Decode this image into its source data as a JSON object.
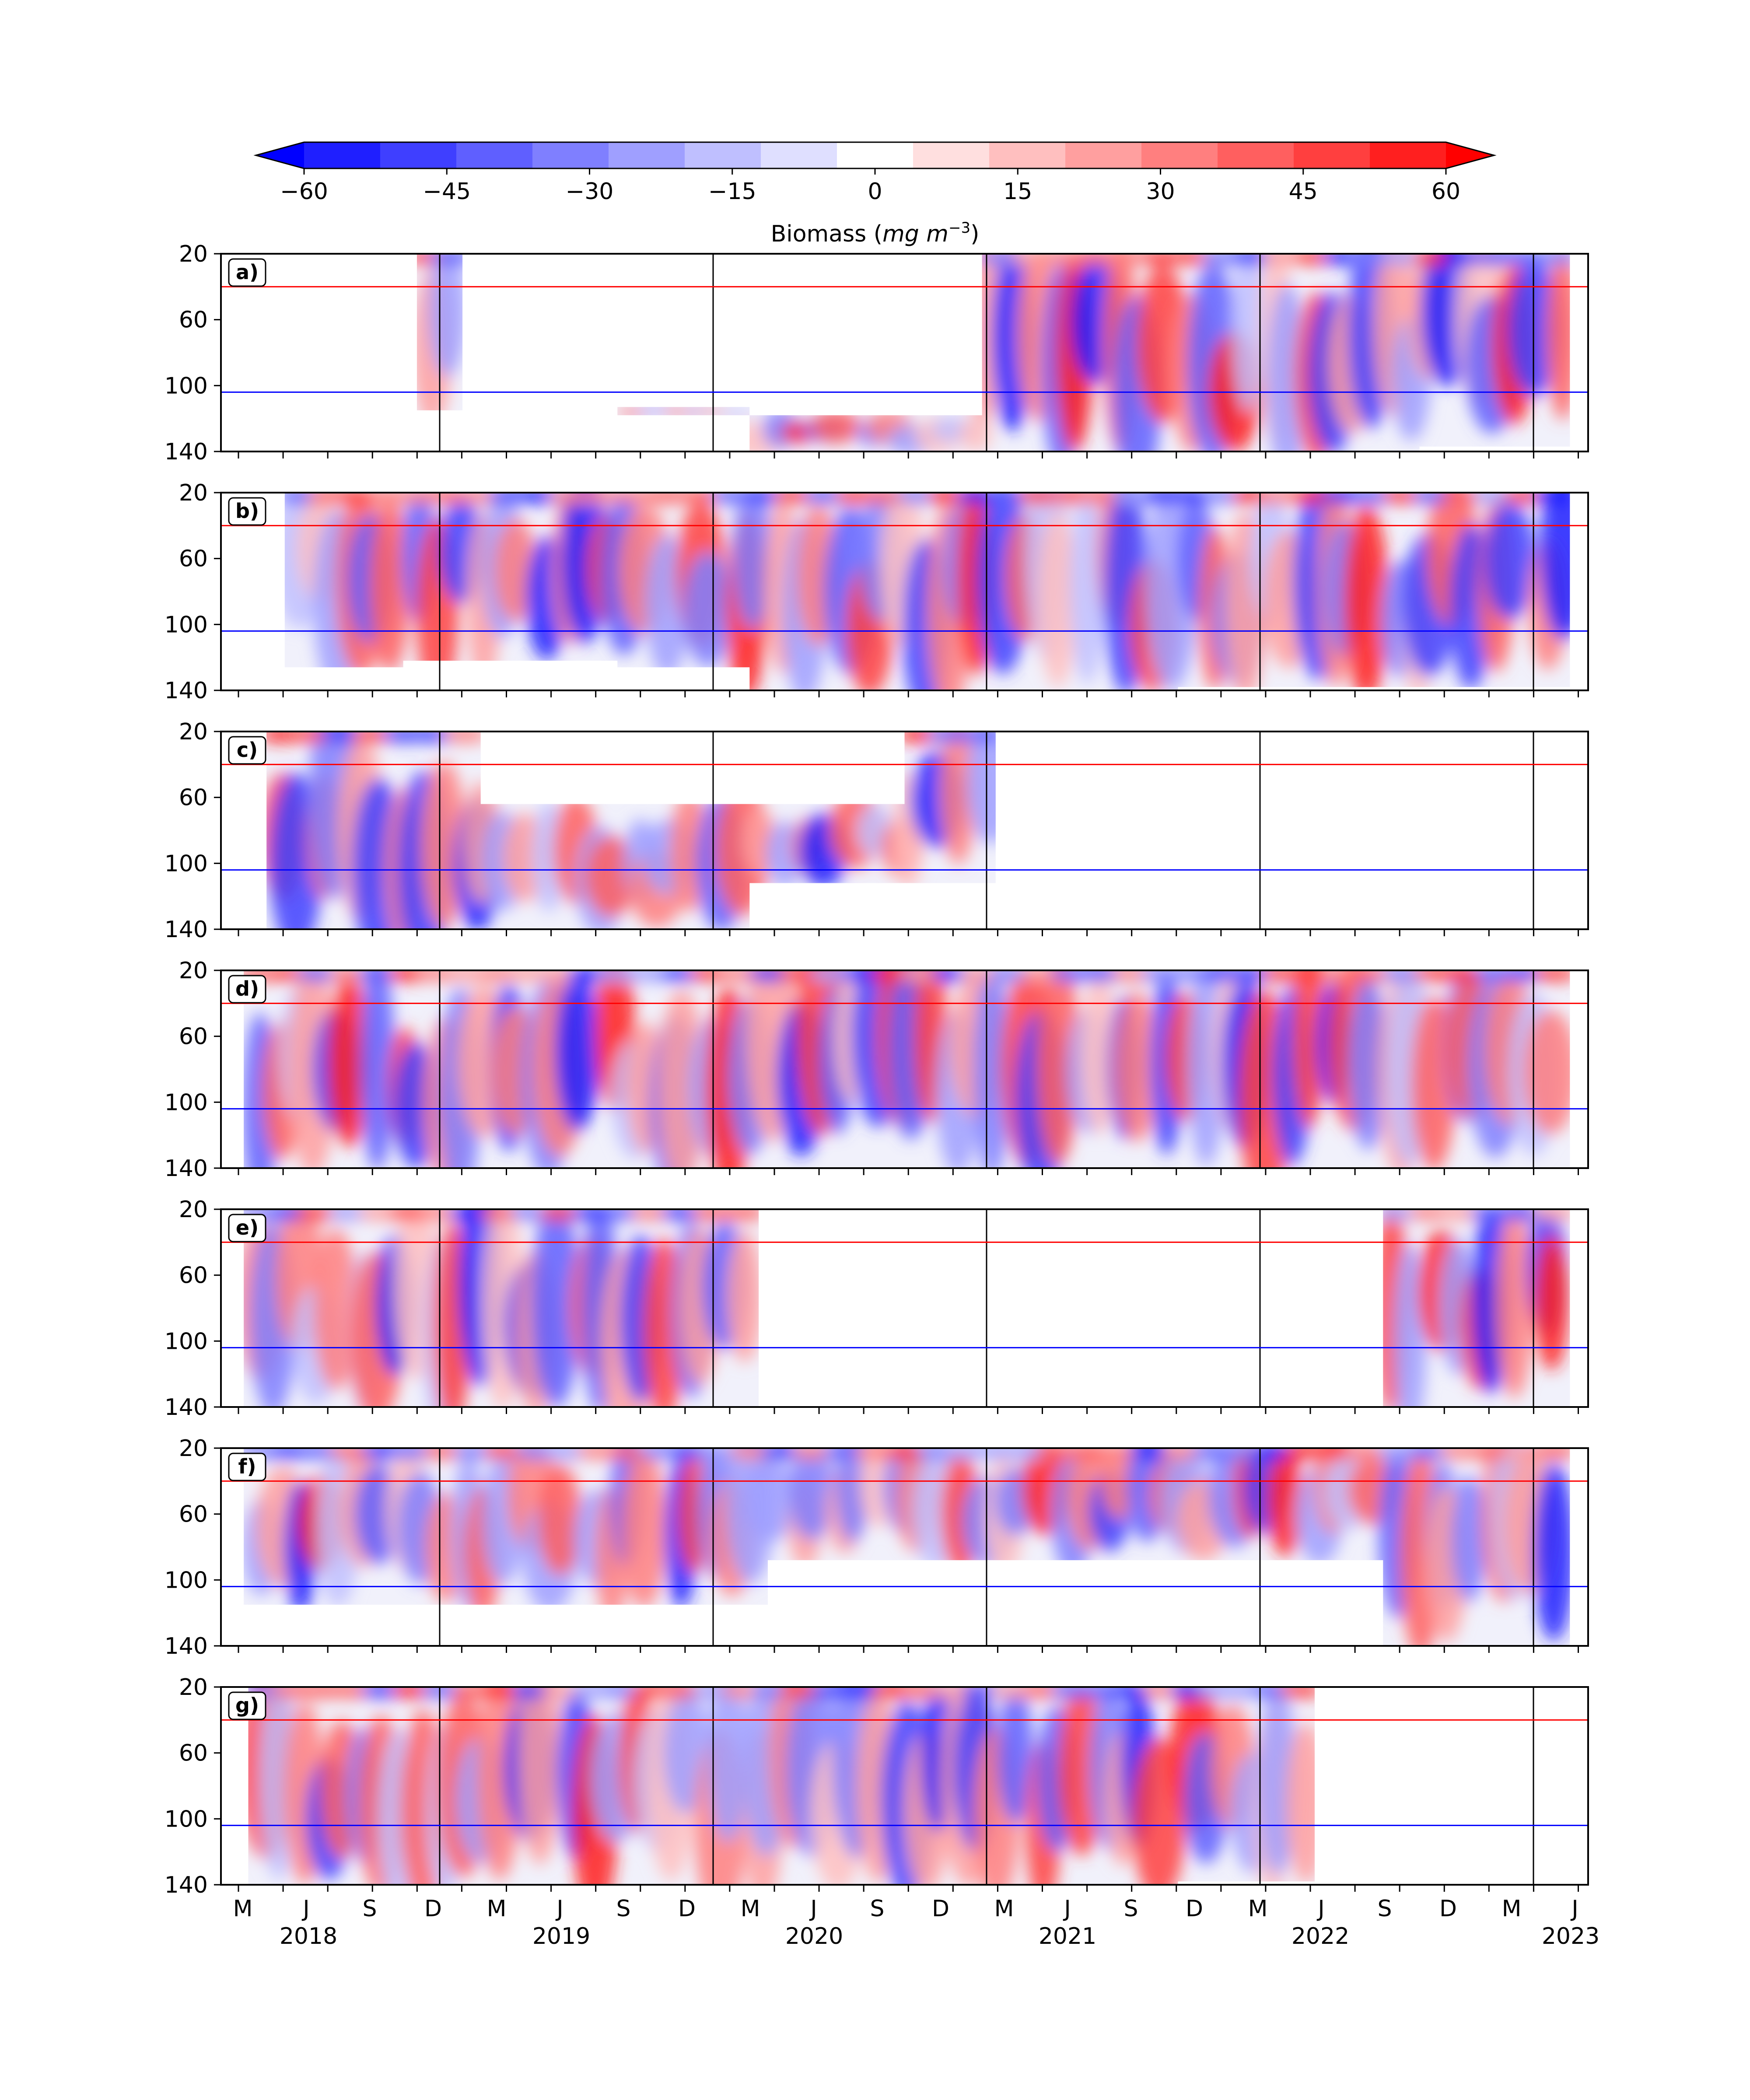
{
  "colorbar": {
    "label_prefix": "Biomass (",
    "label_unit": "mg m",
    "label_exp": "−3",
    "label_suffix": ")",
    "ticks": [
      "−60",
      "−45",
      "−30",
      "−15",
      "0",
      "15",
      "30",
      "45",
      "60"
    ],
    "colors": [
      "#0000ff",
      "#1f1fff",
      "#3f3fff",
      "#5f5fff",
      "#7f7fff",
      "#9f9fff",
      "#bfbfff",
      "#dfdfff",
      "#ffffff",
      "#ffdfdf",
      "#ffbfbf",
      "#ff9f9f",
      "#ff7f7f",
      "#ff5f5f",
      "#ff3f3f",
      "#ff1f1f",
      "#ff0000"
    ]
  },
  "chart_data": {
    "type": "heatmap",
    "title": "",
    "xlabel": "",
    "ylabel": "",
    "ylim": [
      140,
      20
    ],
    "yticks": [
      "20",
      "60",
      "100",
      "140"
    ],
    "vmin": -60,
    "vmax": 60,
    "colorbar_label": "Biomass (mg m−3)",
    "reference_lines": [
      {
        "depth": 40,
        "color": "#ff0000"
      },
      {
        "depth": 104,
        "color": "#0000ff"
      }
    ],
    "month_labels": [
      "M",
      "J",
      "S",
      "D",
      "M",
      "J",
      "S",
      "D",
      "M",
      "J",
      "S",
      "D",
      "M",
      "J",
      "S",
      "D",
      "M",
      "J",
      "S",
      "D",
      "M",
      "J"
    ],
    "year_labels": [
      "2018",
      "2019",
      "2020",
      "2021",
      "2022",
      "2023"
    ],
    "panels": [
      {
        "label": "a)",
        "coverage": [
          {
            "t0": 4.3,
            "t1": 5.3,
            "d0": 20,
            "d1": 115
          },
          {
            "t0": 8.7,
            "t1": 11.6,
            "d0": 113,
            "d1": 118
          },
          {
            "t0": 11.6,
            "t1": 16.7,
            "d0": 118,
            "d1": 140
          },
          {
            "t0": 16.7,
            "t1": 21.0,
            "d0": 20,
            "d1": 140
          },
          {
            "t0": 21.0,
            "t1": 26.3,
            "d0": 20,
            "d1": 140
          },
          {
            "t0": 26.3,
            "t1": 29.6,
            "d0": 20,
            "d1": 137
          }
        ]
      },
      {
        "label": "b)",
        "coverage": [
          {
            "t0": 1.4,
            "t1": 4.0,
            "d0": 20,
            "d1": 126
          },
          {
            "t0": 4.0,
            "t1": 8.7,
            "d0": 20,
            "d1": 122
          },
          {
            "t0": 8.7,
            "t1": 11.6,
            "d0": 20,
            "d1": 126
          },
          {
            "t0": 11.6,
            "t1": 21.0,
            "d0": 20,
            "d1": 140
          },
          {
            "t0": 21.0,
            "t1": 29.6,
            "d0": 20,
            "d1": 138
          }
        ]
      },
      {
        "label": "c)",
        "coverage": [
          {
            "t0": 1.0,
            "t1": 5.7,
            "d0": 20,
            "d1": 140
          },
          {
            "t0": 5.7,
            "t1": 11.6,
            "d0": 64,
            "d1": 140
          },
          {
            "t0": 11.6,
            "t1": 15.0,
            "d0": 64,
            "d1": 112
          },
          {
            "t0": 15.0,
            "t1": 17.0,
            "d0": 20,
            "d1": 112
          }
        ]
      },
      {
        "label": "d)",
        "coverage": [
          {
            "t0": 0.5,
            "t1": 29.6,
            "d0": 20,
            "d1": 140
          }
        ]
      },
      {
        "label": "e)",
        "coverage": [
          {
            "t0": 0.5,
            "t1": 11.8,
            "d0": 20,
            "d1": 140
          },
          {
            "t0": 25.5,
            "t1": 29.6,
            "d0": 20,
            "d1": 140
          }
        ]
      },
      {
        "label": "f)",
        "coverage": [
          {
            "t0": 0.5,
            "t1": 12.0,
            "d0": 20,
            "d1": 115
          },
          {
            "t0": 12.0,
            "t1": 25.5,
            "d0": 20,
            "d1": 88
          },
          {
            "t0": 25.5,
            "t1": 29.6,
            "d0": 20,
            "d1": 140
          }
        ]
      },
      {
        "label": "g)",
        "coverage": [
          {
            "t0": 0.6,
            "t1": 21.0,
            "d0": 20,
            "d1": 140
          },
          {
            "t0": 21.0,
            "t1": 24.0,
            "d0": 20,
            "d1": 138
          }
        ]
      }
    ]
  }
}
